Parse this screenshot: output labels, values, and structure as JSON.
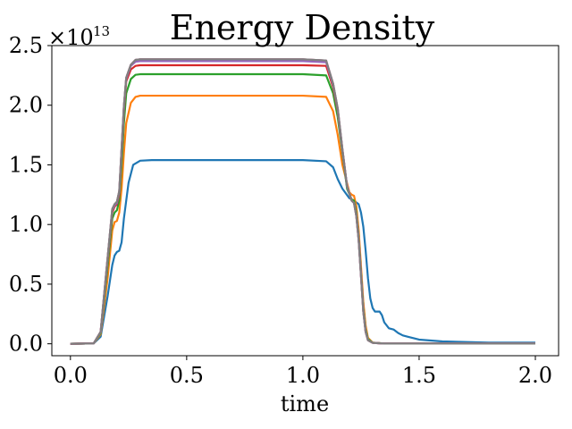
{
  "chart_data": {
    "type": "line",
    "title": "Energy Density",
    "xlabel": "time",
    "ylabel": "",
    "xlim": [
      -0.08,
      2.1
    ],
    "ylim": [
      -0.1,
      2.5
    ],
    "xticks": [
      0.0,
      0.5,
      1.0,
      1.5,
      2.0
    ],
    "xtick_labels": [
      "0.0",
      "0.5",
      "1.0",
      "1.5",
      "2.0"
    ],
    "yticks": [
      0.0,
      0.5,
      1.0,
      1.5,
      2.0,
      2.5
    ],
    "ytick_labels": [
      "0.0",
      "0.5",
      "1.0",
      "1.5",
      "2.0",
      "2.5"
    ],
    "y_offset_base": "×10",
    "y_offset_exponent": "13",
    "grid": false,
    "series": [
      {
        "color": "#1f77b4",
        "x": [
          0,
          0.1,
          0.13,
          0.16,
          0.18,
          0.19,
          0.2,
          0.21,
          0.22,
          0.23,
          0.25,
          0.27,
          0.3,
          0.35,
          0.5,
          1.0,
          1.1,
          1.13,
          1.15,
          1.17,
          1.2,
          1.22,
          1.24,
          1.25,
          1.26,
          1.27,
          1.28,
          1.29,
          1.3,
          1.31,
          1.33,
          1.34,
          1.35,
          1.37,
          1.39,
          1.41,
          1.43,
          1.45,
          1.5,
          1.6,
          1.8,
          2.0
        ],
        "values": [
          0,
          0.003,
          0.06,
          0.4,
          0.66,
          0.74,
          0.77,
          0.78,
          0.85,
          1.05,
          1.35,
          1.5,
          1.535,
          1.54,
          1.54,
          1.54,
          1.53,
          1.48,
          1.38,
          1.3,
          1.22,
          1.2,
          1.17,
          1.1,
          0.98,
          0.78,
          0.55,
          0.38,
          0.3,
          0.27,
          0.27,
          0.24,
          0.18,
          0.13,
          0.12,
          0.09,
          0.07,
          0.06,
          0.035,
          0.02,
          0.01,
          0.01
        ]
      },
      {
        "color": "#ff7f0e",
        "x": [
          0,
          0.1,
          0.13,
          0.16,
          0.18,
          0.19,
          0.2,
          0.21,
          0.22,
          0.23,
          0.24,
          0.26,
          0.28,
          0.3,
          0.5,
          1.0,
          1.1,
          1.13,
          1.15,
          1.17,
          1.2,
          1.21,
          1.22,
          1.23,
          1.24,
          1.25,
          1.26,
          1.27,
          1.28,
          1.3,
          1.35,
          2.0
        ],
        "values": [
          0,
          0.003,
          0.08,
          0.55,
          0.95,
          1.02,
          1.03,
          1.1,
          1.3,
          1.6,
          1.85,
          2.02,
          2.07,
          2.08,
          2.08,
          2.08,
          2.07,
          1.95,
          1.75,
          1.5,
          1.27,
          1.25,
          1.24,
          1.15,
          0.95,
          0.65,
          0.35,
          0.15,
          0.05,
          0.01,
          0.002,
          0.002
        ]
      },
      {
        "color": "#2ca02c",
        "x": [
          0,
          0.1,
          0.13,
          0.16,
          0.18,
          0.19,
          0.2,
          0.21,
          0.22,
          0.23,
          0.24,
          0.26,
          0.28,
          0.3,
          0.5,
          1.0,
          1.1,
          1.13,
          1.15,
          1.17,
          1.19,
          1.21,
          1.22,
          1.23,
          1.24,
          1.25,
          1.26,
          1.27,
          1.28,
          1.3,
          1.35,
          2.0
        ],
        "values": [
          0,
          0.003,
          0.09,
          0.65,
          1.05,
          1.1,
          1.12,
          1.2,
          1.5,
          1.85,
          2.1,
          2.22,
          2.255,
          2.26,
          2.26,
          2.26,
          2.25,
          2.1,
          1.9,
          1.6,
          1.3,
          1.21,
          1.2,
          1.1,
          0.9,
          0.6,
          0.3,
          0.12,
          0.04,
          0.01,
          0.002,
          0.002
        ]
      },
      {
        "color": "#d62728",
        "x": [
          0,
          0.1,
          0.13,
          0.16,
          0.18,
          0.19,
          0.2,
          0.21,
          0.22,
          0.23,
          0.24,
          0.26,
          0.28,
          0.3,
          0.5,
          1.0,
          1.1,
          1.13,
          1.15,
          1.17,
          1.19,
          1.21,
          1.22,
          1.23,
          1.24,
          1.25,
          1.26,
          1.27,
          1.28,
          1.3,
          1.35,
          2.0
        ],
        "values": [
          0,
          0.003,
          0.1,
          0.7,
          1.1,
          1.15,
          1.17,
          1.25,
          1.6,
          1.95,
          2.2,
          2.3,
          2.33,
          2.335,
          2.335,
          2.335,
          2.33,
          2.15,
          1.95,
          1.62,
          1.32,
          1.2,
          1.18,
          1.08,
          0.88,
          0.58,
          0.28,
          0.1,
          0.03,
          0.008,
          0.002,
          0.002
        ]
      },
      {
        "color": "#9467bd",
        "x": [
          0,
          0.1,
          0.13,
          0.16,
          0.18,
          0.19,
          0.2,
          0.21,
          0.22,
          0.23,
          0.24,
          0.26,
          0.28,
          0.3,
          0.5,
          1.0,
          1.1,
          1.13,
          1.15,
          1.17,
          1.19,
          1.21,
          1.22,
          1.23,
          1.24,
          1.25,
          1.26,
          1.27,
          1.28,
          1.3,
          1.35,
          2.0
        ],
        "values": [
          0,
          0.003,
          0.1,
          0.72,
          1.12,
          1.16,
          1.18,
          1.27,
          1.62,
          1.98,
          2.22,
          2.33,
          2.365,
          2.37,
          2.37,
          2.37,
          2.36,
          2.17,
          1.96,
          1.63,
          1.32,
          1.2,
          1.18,
          1.07,
          0.87,
          0.57,
          0.27,
          0.1,
          0.03,
          0.008,
          0.002,
          0.002
        ]
      },
      {
        "color": "#8c564b",
        "x": [
          0,
          0.1,
          0.13,
          0.16,
          0.18,
          0.19,
          0.2,
          0.21,
          0.22,
          0.23,
          0.24,
          0.26,
          0.28,
          0.3,
          0.5,
          1.0,
          1.1,
          1.13,
          1.15,
          1.17,
          1.19,
          1.21,
          1.22,
          1.23,
          1.24,
          1.25,
          1.26,
          1.27,
          1.28,
          1.3,
          1.35,
          2.0
        ],
        "values": [
          0,
          0.003,
          0.1,
          0.72,
          1.13,
          1.17,
          1.19,
          1.28,
          1.63,
          1.99,
          2.23,
          2.34,
          2.38,
          2.385,
          2.385,
          2.385,
          2.375,
          2.18,
          1.97,
          1.63,
          1.32,
          1.2,
          1.18,
          1.07,
          0.87,
          0.57,
          0.27,
          0.1,
          0.03,
          0.008,
          0.002,
          0.002
        ]
      },
      {
        "color": "#e377c2",
        "x": [
          0,
          0.1,
          0.13,
          0.16,
          0.18,
          0.19,
          0.2,
          0.21,
          0.22,
          0.23,
          0.24,
          0.26,
          0.28,
          0.3,
          0.5,
          1.0,
          1.1,
          1.13,
          1.15,
          1.17,
          1.19,
          1.21,
          1.22,
          1.23,
          1.24,
          1.25,
          1.26,
          1.27,
          1.28,
          1.3,
          1.35,
          2.0
        ],
        "values": [
          0,
          0.003,
          0.1,
          0.72,
          1.13,
          1.17,
          1.19,
          1.28,
          1.63,
          1.99,
          2.23,
          2.34,
          2.38,
          2.385,
          2.385,
          2.385,
          2.375,
          2.18,
          1.97,
          1.63,
          1.32,
          1.2,
          1.18,
          1.07,
          0.87,
          0.57,
          0.27,
          0.1,
          0.03,
          0.008,
          0.002,
          0.002
        ]
      },
      {
        "color": "#7f7f7f",
        "x": [
          0,
          0.1,
          0.13,
          0.16,
          0.18,
          0.19,
          0.2,
          0.21,
          0.22,
          0.23,
          0.24,
          0.26,
          0.28,
          0.3,
          0.5,
          1.0,
          1.1,
          1.13,
          1.15,
          1.17,
          1.19,
          1.21,
          1.22,
          1.23,
          1.24,
          1.25,
          1.26,
          1.27,
          1.28,
          1.3,
          1.35,
          2.0
        ],
        "values": [
          0,
          0.003,
          0.1,
          0.72,
          1.13,
          1.17,
          1.19,
          1.28,
          1.63,
          1.99,
          2.23,
          2.34,
          2.38,
          2.385,
          2.385,
          2.385,
          2.375,
          2.18,
          1.97,
          1.63,
          1.32,
          1.2,
          1.18,
          1.07,
          0.87,
          0.57,
          0.27,
          0.1,
          0.03,
          0.008,
          0.002,
          0.002
        ]
      }
    ]
  }
}
